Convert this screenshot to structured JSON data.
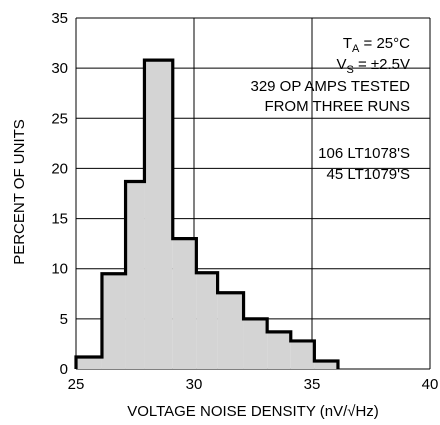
{
  "chart_data": {
    "type": "bar",
    "title": "",
    "xlabel": "VOLTAGE NOISE DENSITY (nV/√Hz)",
    "ylabel": "PERCENT OF UNITS",
    "xlim": [
      25,
      40
    ],
    "ylim": [
      0,
      35
    ],
    "x_ticks": [
      25,
      30,
      35,
      40
    ],
    "y_ticks": [
      0,
      5,
      10,
      15,
      20,
      25,
      30,
      35
    ],
    "grid": true,
    "bins": [
      {
        "x0": 25.0,
        "x1": 26.1,
        "value": 1.2
      },
      {
        "x0": 26.1,
        "x1": 27.1,
        "value": 9.5
      },
      {
        "x0": 27.1,
        "x1": 27.9,
        "value": 18.7
      },
      {
        "x0": 27.9,
        "x1": 29.1,
        "value": 30.8
      },
      {
        "x0": 29.1,
        "x1": 30.1,
        "value": 13.0
      },
      {
        "x0": 30.1,
        "x1": 31.0,
        "value": 9.6
      },
      {
        "x0": 31.0,
        "x1": 32.1,
        "value": 7.6
      },
      {
        "x0": 32.1,
        "x1": 33.1,
        "value": 5.0
      },
      {
        "x0": 33.1,
        "x1": 34.1,
        "value": 3.7
      },
      {
        "x0": 34.1,
        "x1": 35.1,
        "value": 2.8
      },
      {
        "x0": 35.1,
        "x1": 36.1,
        "value": 0.8
      }
    ],
    "annotations": [
      "TA = 25°C",
      "VS = ±2.5V",
      "329 OP AMPS TESTED",
      "FROM THREE RUNS",
      "106 LT1078'S",
      "45 LT1079'S"
    ]
  },
  "annotation_parts": {
    "ta_main": "T",
    "ta_sub": "A",
    "ta_rest": " = 25°C",
    "vs_main": "V",
    "vs_sub": "S",
    "vs_rest": " = ±2.5V"
  }
}
